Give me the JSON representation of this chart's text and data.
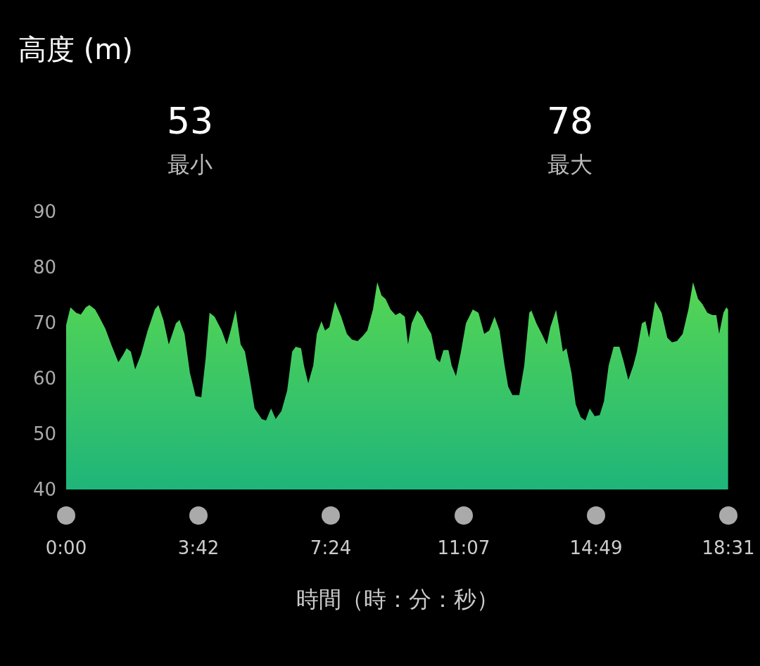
{
  "chart_data": {
    "type": "area",
    "title": "高度 (m)",
    "xlabel": "時間（時：分：秒）",
    "annotations": [
      "53",
      "最小",
      "78",
      "最大"
    ],
    "color": "#4cd44a",
    "grid": false,
    "xlim": [
      0,
      18.5167
    ],
    "ylim": [
      40,
      90
    ],
    "yticks": [
      40,
      50,
      60,
      70,
      80,
      90
    ],
    "xticks": [
      {
        "value": 0,
        "label": "0:00"
      },
      {
        "value": 3.7,
        "label": "3:42"
      },
      {
        "value": 7.4,
        "label": "7:24"
      },
      {
        "value": 11.1167,
        "label": "11:07"
      },
      {
        "value": 14.8167,
        "label": "14:49"
      },
      {
        "value": 18.5167,
        "label": "18:31"
      }
    ],
    "x": [
      0,
      0.12,
      0.28,
      0.41,
      0.55,
      0.65,
      0.81,
      0.94,
      1.1,
      1.26,
      1.46,
      1.59,
      1.69,
      1.81,
      1.93,
      2.09,
      2.28,
      2.48,
      2.58,
      2.72,
      2.87,
      3.07,
      3.17,
      3.31,
      3.46,
      3.62,
      3.78,
      3.9,
      4.01,
      4.15,
      4.35,
      4.49,
      4.6,
      4.74,
      4.88,
      5.0,
      5.14,
      5.27,
      5.47,
      5.59,
      5.73,
      5.86,
      6.02,
      6.18,
      6.32,
      6.42,
      6.57,
      6.65,
      6.77,
      6.91,
      7.01,
      7.14,
      7.24,
      7.36,
      7.52,
      7.69,
      7.85,
      7.99,
      8.15,
      8.29,
      8.42,
      8.58,
      8.7,
      8.82,
      8.93,
      9.07,
      9.21,
      9.33,
      9.47,
      9.56,
      9.66,
      9.82,
      9.96,
      10.1,
      10.21,
      10.35,
      10.45,
      10.55,
      10.69,
      10.78,
      10.9,
      11.04,
      11.18,
      11.37,
      11.53,
      11.69,
      11.83,
      11.98,
      12.12,
      12.26,
      12.36,
      12.48,
      12.67,
      12.81,
      12.95,
      13.01,
      13.15,
      13.3,
      13.44,
      13.54,
      13.7,
      13.8,
      13.89,
      13.99,
      14.13,
      14.25,
      14.39,
      14.52,
      14.64,
      14.78,
      14.92,
      15.04,
      15.17,
      15.31,
      15.47,
      15.57,
      15.72,
      15.86,
      15.96,
      16.1,
      16.2,
      16.3,
      16.47,
      16.65,
      16.81,
      16.94,
      17.08,
      17.24,
      17.4,
      17.53,
      17.67,
      17.79,
      17.93,
      18.07,
      18.18,
      18.26,
      18.38,
      18.46,
      18.51
    ],
    "values": [
      69.6,
      72.8,
      71.8,
      71.5,
      72.8,
      73.2,
      72.4,
      70.9,
      68.9,
      66.1,
      62.9,
      64.2,
      65.4,
      64.8,
      61.6,
      64.2,
      68.6,
      72.4,
      73.2,
      70.5,
      66.1,
      69.9,
      70.5,
      68.0,
      61.0,
      56.8,
      56.6,
      63.5,
      71.8,
      71.1,
      68.6,
      66.1,
      68.6,
      72.3,
      66.1,
      64.8,
      59.7,
      54.6,
      52.7,
      52.4,
      54.6,
      52.7,
      54.1,
      57.8,
      64.8,
      65.7,
      65.4,
      62.3,
      59.1,
      62.3,
      68.0,
      70.3,
      68.6,
      69.2,
      73.8,
      71.1,
      68.0,
      67.0,
      66.7,
      67.6,
      68.6,
      72.4,
      77.3,
      74.9,
      74.3,
      72.4,
      71.4,
      71.8,
      71.1,
      66.1,
      69.9,
      72.2,
      71.1,
      69.2,
      68.0,
      63.5,
      62.9,
      65.1,
      65.1,
      62.3,
      60.4,
      64.8,
      69.9,
      72.4,
      71.8,
      68.0,
      68.6,
      71.1,
      68.6,
      62.3,
      58.5,
      57.0,
      57.0,
      62.3,
      71.8,
      72.2,
      69.9,
      68.0,
      66.1,
      69.2,
      72.3,
      68.6,
      64.8,
      65.4,
      61.0,
      55.3,
      53.0,
      52.4,
      54.6,
      53.2,
      53.4,
      55.9,
      62.3,
      65.7,
      65.7,
      63.5,
      59.7,
      62.3,
      64.8,
      69.9,
      70.3,
      67.3,
      73.9,
      71.8,
      67.3,
      66.5,
      66.7,
      68.0,
      72.4,
      77.3,
      74.3,
      73.4,
      71.8,
      71.4,
      71.4,
      68.0,
      71.8,
      72.8,
      72.4
    ]
  }
}
